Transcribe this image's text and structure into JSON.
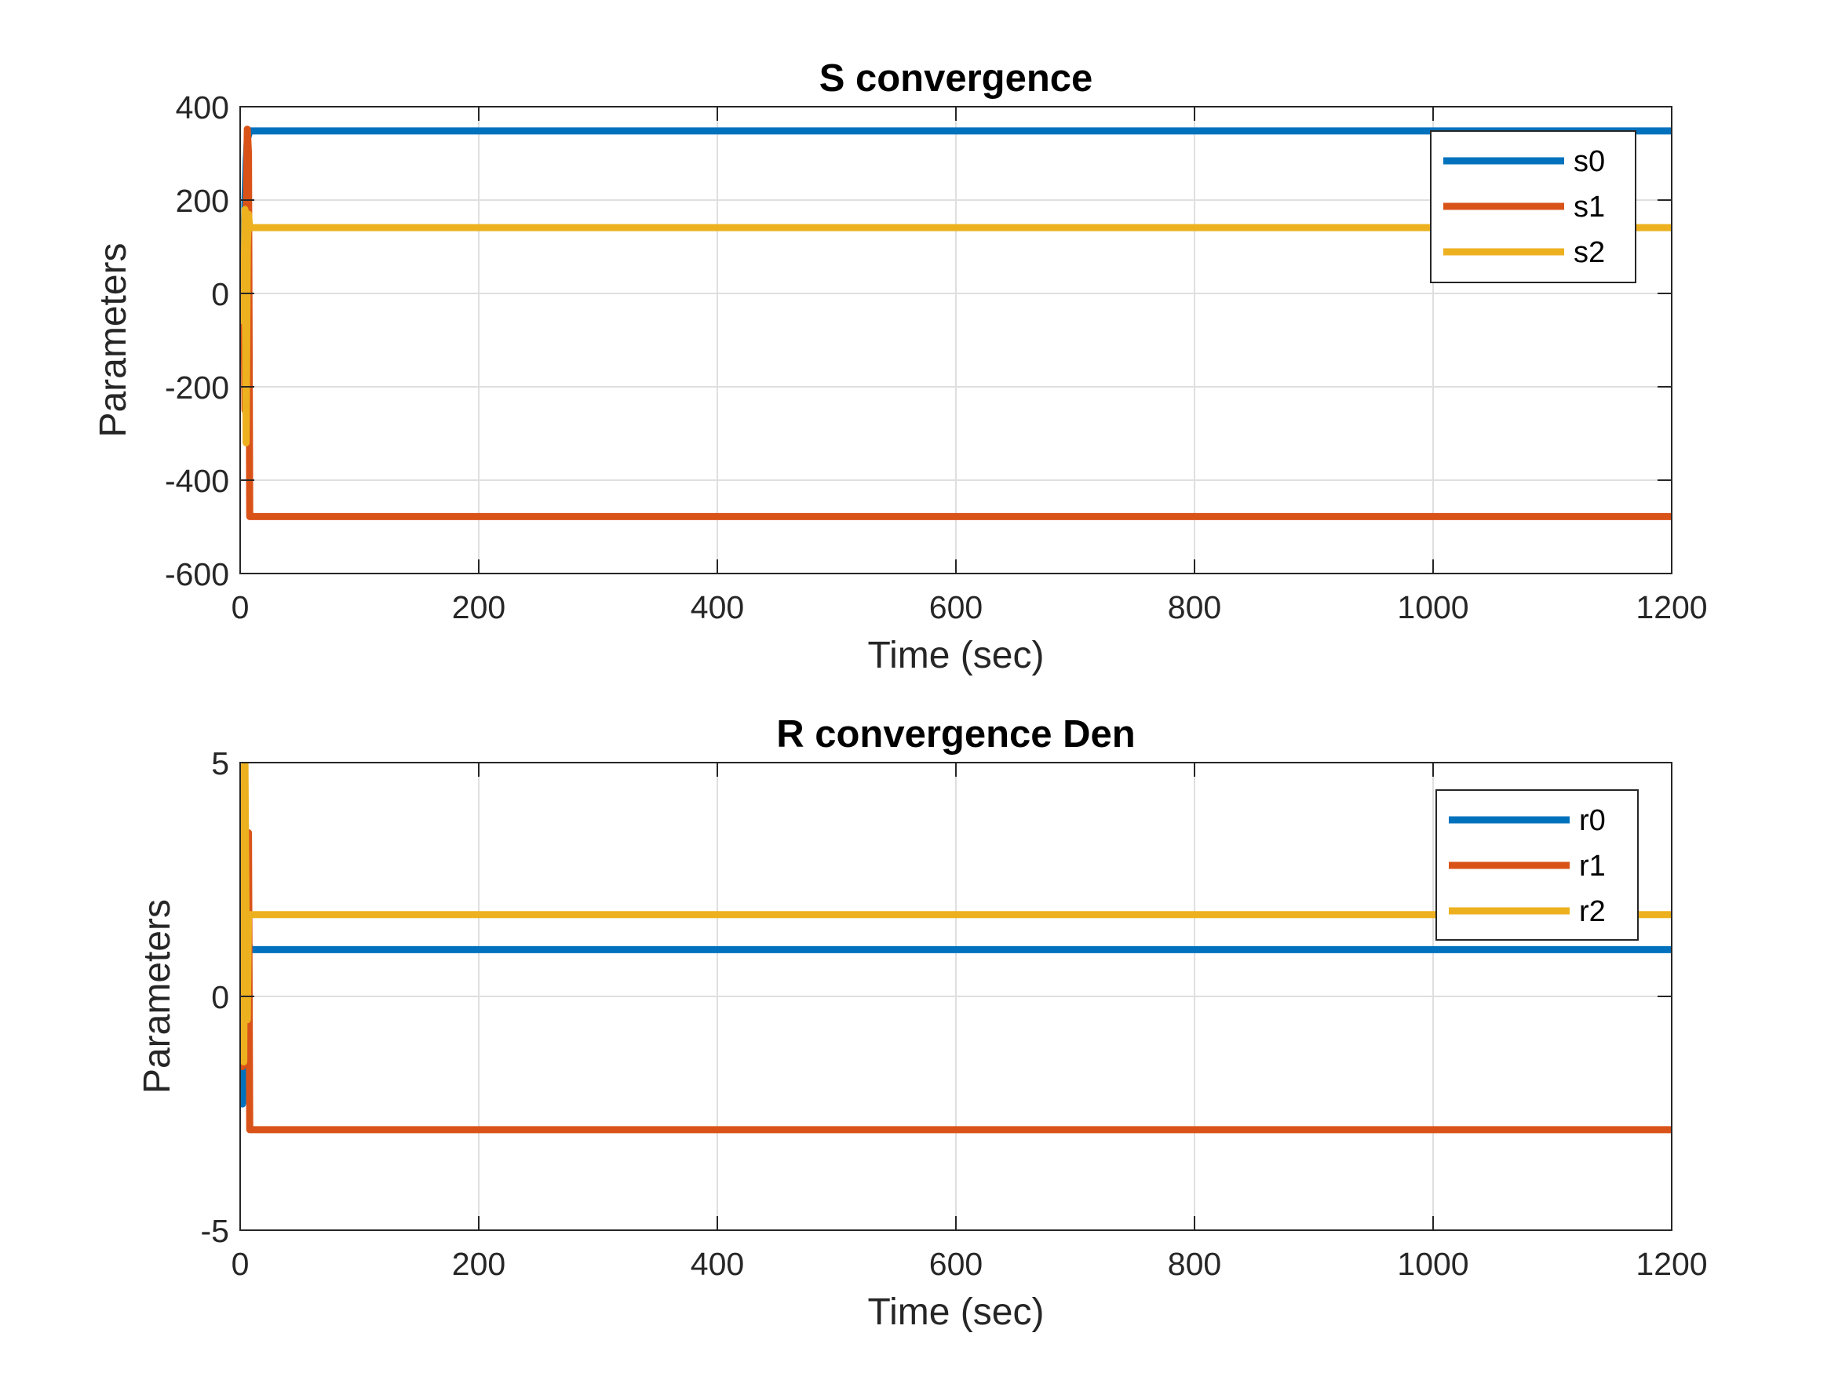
{
  "chart_data": [
    {
      "type": "line",
      "title": "S convergence",
      "xlabel": "Time (sec)",
      "ylabel": "Parameters",
      "xlim": [
        0,
        1200
      ],
      "ylim": [
        -600,
        400
      ],
      "xticks": [
        0,
        200,
        400,
        600,
        800,
        1000,
        1200
      ],
      "xtick_labels": [
        "0",
        "200",
        "400",
        "600",
        "800",
        "1000",
        "1200"
      ],
      "yticks": [
        400,
        200,
        0,
        -200,
        -400,
        -600
      ],
      "ytick_labels": [
        "400",
        "200",
        "0",
        "-200",
        "-400",
        "-600"
      ],
      "grid": true,
      "legend_position": "top-right",
      "series": [
        {
          "name": "s0",
          "color": "#0072BD",
          "x": [
            0,
            1,
            2,
            3,
            4,
            5,
            6,
            8,
            10,
            1200
          ],
          "y": [
            0,
            60,
            -40,
            90,
            200,
            280,
            330,
            348,
            348,
            348
          ]
        },
        {
          "name": "s1",
          "color": "#D95319",
          "x": [
            0,
            2,
            3,
            4,
            5,
            6,
            7,
            8,
            10,
            1200
          ],
          "y": [
            0,
            -90,
            40,
            -250,
            150,
            352,
            300,
            -478,
            -478,
            -478
          ]
        },
        {
          "name": "s2",
          "color": "#EDB120",
          "x": [
            0,
            2,
            3,
            4,
            5,
            6,
            7,
            8,
            10,
            1200
          ],
          "y": [
            0,
            20,
            -60,
            180,
            -320,
            100,
            170,
            140,
            141,
            141
          ]
        }
      ]
    },
    {
      "type": "line",
      "title": "R convergence Den",
      "xlabel": "Time (sec)",
      "ylabel": "Parameters",
      "xlim": [
        0,
        1200
      ],
      "ylim": [
        -5,
        5
      ],
      "xticks": [
        0,
        200,
        400,
        600,
        800,
        1000,
        1200
      ],
      "xtick_labels": [
        "0",
        "200",
        "400",
        "600",
        "800",
        "1000",
        "1200"
      ],
      "yticks": [
        5,
        0,
        -5
      ],
      "ytick_labels": [
        "5",
        "0",
        "-5"
      ],
      "grid": true,
      "legend_position": "top-right",
      "series": [
        {
          "name": "r0",
          "color": "#0072BD",
          "x": [
            0,
            1,
            2,
            3,
            4,
            5,
            6,
            8,
            10,
            1200
          ],
          "y": [
            0,
            -1.2,
            -2.3,
            -0.5,
            1.8,
            0.4,
            1.3,
            1.0,
            1.0,
            1.0
          ]
        },
        {
          "name": "r1",
          "color": "#D95319",
          "x": [
            0,
            2,
            3,
            4,
            5,
            6,
            7,
            8,
            10,
            1200
          ],
          "y": [
            0,
            -1.5,
            0.8,
            3.5,
            -1.0,
            2.8,
            3.5,
            -2.85,
            -2.85,
            -2.85
          ]
        },
        {
          "name": "r2",
          "color": "#EDB120",
          "x": [
            0,
            2,
            3,
            4,
            5,
            6,
            7,
            8,
            10,
            1200
          ],
          "y": [
            0,
            4.9,
            -1.4,
            5.0,
            1.5,
            -0.5,
            1.75,
            1.75,
            1.75,
            1.75
          ]
        }
      ]
    }
  ]
}
